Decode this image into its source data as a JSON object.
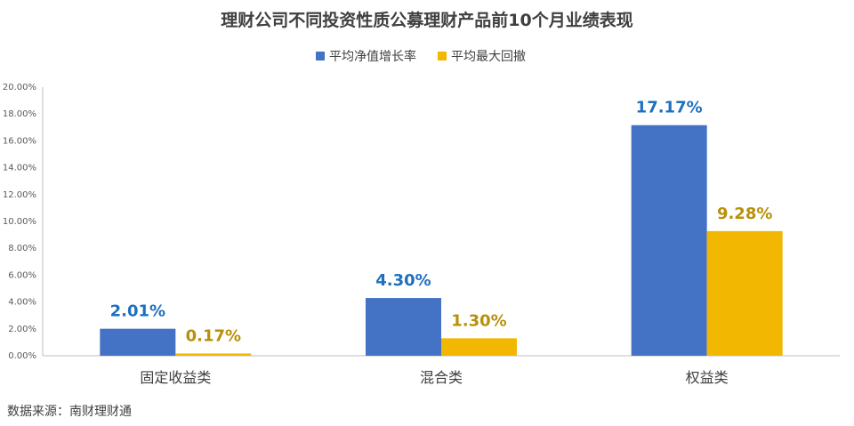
{
  "chart_data": {
    "type": "bar",
    "title": "理财公司不同投资性质公募理财产品前10个月业绩表现",
    "categories": [
      "固定收益类",
      "混合类",
      "权益类"
    ],
    "series": [
      {
        "name": "平均净值增长率",
        "values": [
          2.01,
          4.3,
          17.17
        ],
        "labels": [
          "2.01%",
          "4.30%",
          "17.17%"
        ],
        "color": "#4472c4"
      },
      {
        "name": "平均最大回撤",
        "values": [
          0.17,
          1.3,
          9.28
        ],
        "labels": [
          "0.17%",
          "1.30%",
          "9.28%"
        ],
        "color": "#f2b700"
      }
    ],
    "ylim": [
      0,
      20
    ],
    "yticks": [
      "0.00%",
      "2.00%",
      "4.00%",
      "6.00%",
      "8.00%",
      "10.00%",
      "12.00%",
      "14.00%",
      "16.00%",
      "18.00%",
      "20.00%"
    ],
    "legend_position": "top-center",
    "grid": false,
    "source": "数据来源：南财理财通"
  }
}
